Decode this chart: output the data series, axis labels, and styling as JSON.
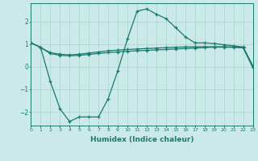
{
  "xlabel": "Humidex (Indice chaleur)",
  "background_color": "#cce9e9",
  "line_color": "#1a7a6e",
  "grid_color": "#a8d5cc",
  "xlim": [
    0,
    23
  ],
  "ylim": [
    -2.6,
    2.8
  ],
  "yticks": [
    -2,
    -1,
    0,
    1,
    2
  ],
  "xticks": [
    0,
    1,
    2,
    3,
    4,
    5,
    6,
    7,
    8,
    9,
    10,
    11,
    12,
    13,
    14,
    15,
    16,
    17,
    18,
    19,
    20,
    21,
    22,
    23
  ],
  "series": [
    {
      "x": [
        0,
        1,
        2,
        3,
        4,
        5,
        6,
        7,
        8,
        9,
        10,
        11,
        12,
        13,
        14,
        15,
        16,
        17,
        18,
        19,
        20,
        21,
        22,
        23
      ],
      "y": [
        1.05,
        0.85,
        0.62,
        0.55,
        0.52,
        0.55,
        0.6,
        0.65,
        0.7,
        0.73,
        0.76,
        0.78,
        0.8,
        0.82,
        0.84,
        0.86,
        0.87,
        0.88,
        0.88,
        0.88,
        0.88,
        0.87,
        0.85,
        0.02
      ]
    },
    {
      "x": [
        0,
        1,
        2,
        3,
        4,
        5,
        6,
        7,
        8,
        9,
        10,
        11,
        12,
        13,
        14,
        15,
        16,
        17,
        18,
        19,
        20,
        21,
        22,
        23
      ],
      "y": [
        1.05,
        0.85,
        0.58,
        0.5,
        0.48,
        0.5,
        0.54,
        0.58,
        0.62,
        0.65,
        0.68,
        0.7,
        0.72,
        0.74,
        0.76,
        0.78,
        0.8,
        0.82,
        0.84,
        0.86,
        0.86,
        0.85,
        0.83,
        -0.05
      ]
    },
    {
      "x": [
        0,
        1,
        2,
        3,
        4,
        5,
        6,
        7,
        8,
        9,
        10,
        11,
        12,
        13,
        14,
        15,
        16,
        17,
        18,
        19,
        20,
        21,
        22,
        23
      ],
      "y": [
        1.05,
        0.85,
        -0.65,
        -1.85,
        -2.42,
        -2.22,
        -2.22,
        -2.22,
        -1.42,
        -0.18,
        1.22,
        2.45,
        2.55,
        2.32,
        2.12,
        1.72,
        1.32,
        1.05,
        1.05,
        1.02,
        0.97,
        0.92,
        0.87,
        0.03
      ]
    }
  ]
}
